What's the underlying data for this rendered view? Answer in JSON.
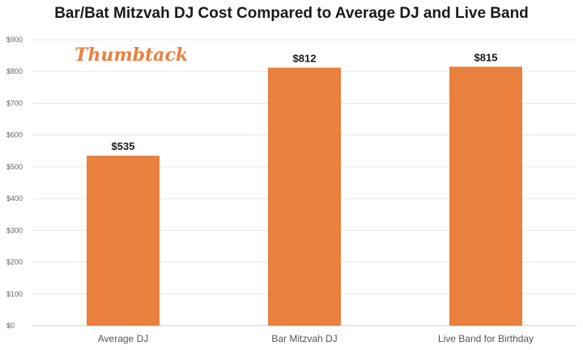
{
  "chart_data": {
    "type": "bar",
    "title": "Bar/Bat Mitzvah DJ Cost Compared to Average DJ and Live Band",
    "categories": [
      "Average DJ",
      "Bar Mitzvah DJ",
      "Live Band for Birthday"
    ],
    "values": [
      535,
      812,
      815
    ],
    "value_labels": [
      "$535",
      "$812",
      "$815"
    ],
    "ylim": [
      0,
      900
    ],
    "yticks": [
      0,
      100,
      200,
      300,
      400,
      500,
      600,
      700,
      800,
      900
    ],
    "ytick_labels": [
      "$0",
      "$100",
      "$200",
      "$300",
      "$400",
      "$500",
      "$600",
      "$700",
      "$800",
      "$900"
    ],
    "grid": true,
    "bar_color": "#e9803e",
    "logo_text": "Thumbtack"
  }
}
